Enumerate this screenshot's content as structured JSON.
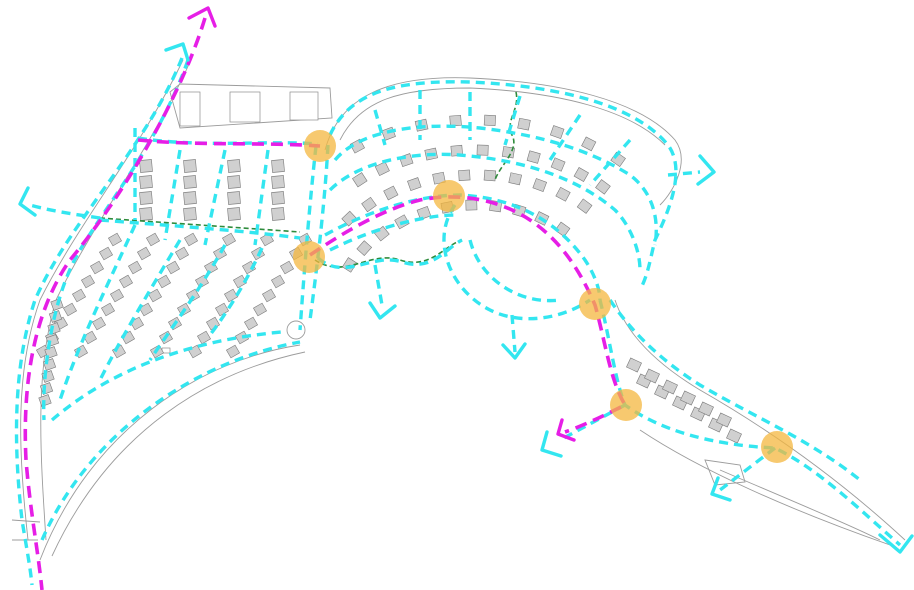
{
  "colors": {
    "background": "#ffffff",
    "pedestrian_route": "#33e6f0",
    "cycle_route": "#e61ee6",
    "green_trail": "#2e8b3c",
    "node_marker": "#f4b73f",
    "building_fill": "#d0d0d0",
    "line_gray": "#8d8d8d"
  },
  "icons": {
    "node_marker": "circle-node-icon",
    "exit_arrow": "chevron-arrow-icon"
  },
  "layers": [
    "pedestrian-route-layer",
    "cycle-route-layer",
    "green-trail-layer",
    "node-marker-layer",
    "site-plan-base-layer"
  ]
}
